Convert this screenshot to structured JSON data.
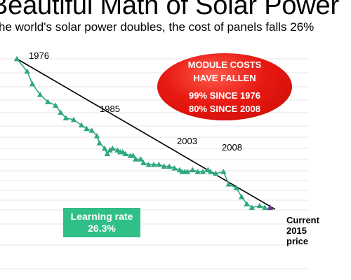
{
  "header": {
    "title": "Beautiful Math of Solar Power",
    "subtitle": "he world's solar power doubles, the cost of panels falls 26%"
  },
  "callout": {
    "line1": "MODULE COSTS",
    "line2": "HAVE FALLEN",
    "line3": "99% SINCE 1976",
    "line4": "80% SINCE 2008",
    "color": "#e81a12"
  },
  "learning_rate": {
    "label": "Learning rate",
    "value": "26.3%",
    "color": "#2fbf87"
  },
  "current_price": {
    "line1": "Current",
    "line2": "2015",
    "line3": "price",
    "marker_color": "#6a3d9a"
  },
  "chart_data": {
    "type": "scatter",
    "title": "Beautiful Math of Solar Power",
    "subtitle": "he world's solar power doubles, the cost of panels falls 26%",
    "xlabel": "",
    "ylabel": "",
    "grid": true,
    "series": [
      {
        "color": "#2ea87a",
        "points": [
          [
            0.0,
            1.0
          ],
          [
            0.04,
            0.93
          ],
          [
            0.06,
            0.86
          ],
          [
            0.09,
            0.8
          ],
          [
            0.12,
            0.76
          ],
          [
            0.15,
            0.74
          ],
          [
            0.17,
            0.7
          ],
          [
            0.19,
            0.67
          ],
          [
            0.22,
            0.66
          ],
          [
            0.25,
            0.63
          ],
          [
            0.27,
            0.61
          ],
          [
            0.29,
            0.6
          ],
          [
            0.31,
            0.57
          ],
          [
            0.32,
            0.53
          ],
          [
            0.34,
            0.5
          ],
          [
            0.35,
            0.47
          ],
          [
            0.36,
            0.49
          ],
          [
            0.37,
            0.5
          ],
          [
            0.39,
            0.49
          ],
          [
            0.4,
            0.48
          ],
          [
            0.41,
            0.48
          ],
          [
            0.42,
            0.47
          ],
          [
            0.44,
            0.46
          ],
          [
            0.45,
            0.46
          ],
          [
            0.46,
            0.44
          ],
          [
            0.48,
            0.44
          ],
          [
            0.49,
            0.42
          ],
          [
            0.51,
            0.41
          ],
          [
            0.53,
            0.41
          ],
          [
            0.55,
            0.41
          ],
          [
            0.57,
            0.4
          ],
          [
            0.59,
            0.4
          ],
          [
            0.61,
            0.39
          ],
          [
            0.63,
            0.38
          ],
          [
            0.64,
            0.37
          ],
          [
            0.65,
            0.37
          ],
          [
            0.66,
            0.37
          ],
          [
            0.68,
            0.38
          ],
          [
            0.7,
            0.37
          ],
          [
            0.72,
            0.37
          ],
          [
            0.74,
            0.38
          ],
          [
            0.75,
            0.37
          ],
          [
            0.77,
            0.36
          ],
          [
            0.8,
            0.37
          ],
          [
            0.82,
            0.3
          ],
          [
            0.85,
            0.28
          ],
          [
            0.87,
            0.23
          ],
          [
            0.89,
            0.19
          ],
          [
            0.91,
            0.17
          ],
          [
            0.94,
            0.18
          ],
          [
            0.96,
            0.17
          ]
        ]
      },
      {
        "name": "Current 2015 price",
        "color": "#6a3d9a",
        "points": [
          [
            0.98,
            0.17
          ]
        ]
      }
    ],
    "trendline": {
      "from": [
        0.0,
        1.0
      ],
      "to": [
        1.0,
        0.16
      ]
    },
    "annotations": [
      "1976",
      "1985",
      "2003",
      "2008"
    ]
  }
}
